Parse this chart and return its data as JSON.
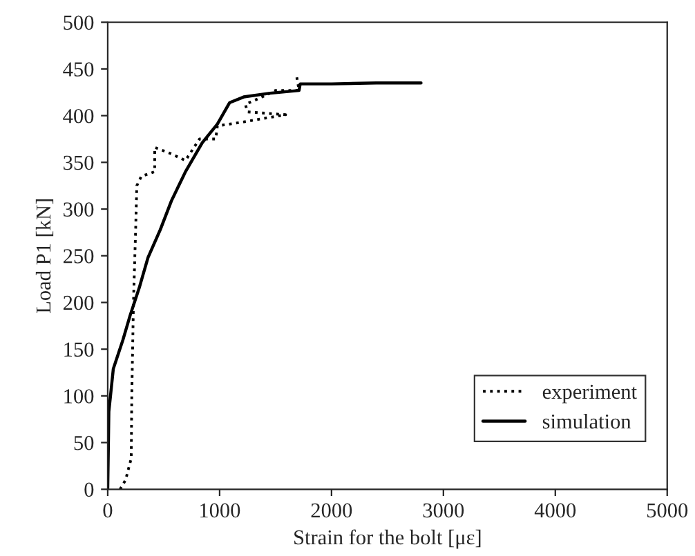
{
  "chart_data": {
    "type": "line",
    "xlabel": "Strain for the bolt [με]",
    "ylabel": "Load P1 [kN]",
    "xlim": [
      0,
      5000
    ],
    "ylim": [
      0,
      500
    ],
    "xticks": [
      0,
      1000,
      2000,
      3000,
      4000,
      5000
    ],
    "yticks": [
      0,
      50,
      100,
      150,
      200,
      250,
      300,
      350,
      400,
      450,
      500
    ],
    "grid": false,
    "legend": "bottom right",
    "series": [
      {
        "name": "experiment",
        "color": "#000000",
        "line_style": "dotted",
        "x": [
          110,
          160,
          210,
          215,
          230,
          250,
          260,
          300,
          420,
          420,
          550,
          695,
          820,
          965,
          980,
          1200,
          1590,
          1250,
          1230,
          1380,
          1500,
          1710,
          1690
        ],
        "values": [
          0,
          10,
          33,
          100,
          200,
          280,
          325,
          335,
          340,
          366,
          360,
          352,
          375,
          375,
          389,
          393,
          401,
          404,
          412,
          420,
          427,
          427,
          441
        ]
      },
      {
        "name": "simulation",
        "color": "#000000",
        "line_style": "solid",
        "x": [
          0,
          10,
          50,
          136,
          200,
          285,
          360,
          470,
          570,
          695,
          845,
          980,
          1090,
          1215,
          1450,
          1710,
          1720,
          2000,
          2400,
          2800
        ],
        "values": [
          0,
          83,
          129,
          160,
          186,
          217,
          248,
          278,
          309,
          340,
          371,
          391,
          414,
          420,
          424,
          427,
          434,
          434,
          435,
          435
        ]
      }
    ]
  }
}
